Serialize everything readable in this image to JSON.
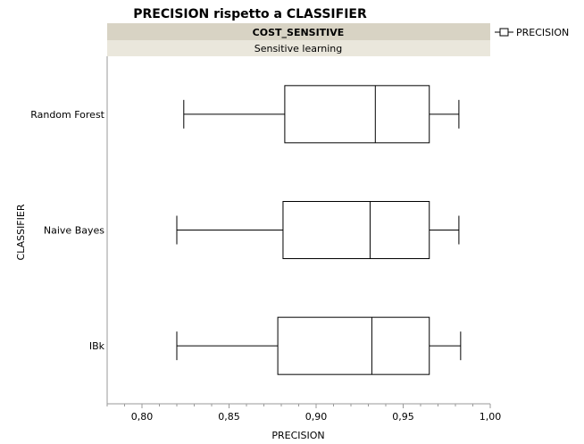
{
  "chart_data": {
    "type": "boxplot",
    "title": "PRECISION rispetto a CLASSIFIER",
    "group_header": "COST_SENSITIVE",
    "group_value": "Sensitive learning",
    "xlabel": "PRECISION",
    "ylabel": "CLASSIFIER",
    "xlim": [
      0.78,
      1.0
    ],
    "x_ticks": [
      "0,80",
      "0,85",
      "0,90",
      "0,95",
      "1,00"
    ],
    "legend": [
      "PRECISION"
    ],
    "legend_position": "top-right",
    "categories": [
      "Random Forest",
      "Naive Bayes",
      "IBk"
    ],
    "boxes": [
      {
        "name": "Random Forest",
        "min": 0.824,
        "q1": 0.882,
        "median": 0.934,
        "q3": 0.965,
        "max": 0.982
      },
      {
        "name": "Naive Bayes",
        "min": 0.82,
        "q1": 0.881,
        "median": 0.931,
        "q3": 0.965,
        "max": 0.982
      },
      {
        "name": "IBk",
        "min": 0.82,
        "q1": 0.878,
        "median": 0.932,
        "q3": 0.965,
        "max": 0.983
      }
    ]
  }
}
